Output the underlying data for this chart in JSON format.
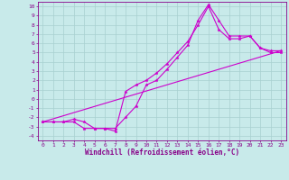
{
  "title": "",
  "xlabel": "Windchill (Refroidissement éolien,°C)",
  "ylabel": "",
  "xlim": [
    -0.5,
    23.5
  ],
  "ylim": [
    -4.5,
    10.5
  ],
  "xticks": [
    0,
    1,
    2,
    3,
    4,
    5,
    6,
    7,
    8,
    9,
    10,
    11,
    12,
    13,
    14,
    15,
    16,
    17,
    18,
    19,
    20,
    21,
    22,
    23
  ],
  "yticks": [
    -4,
    -3,
    -2,
    -1,
    0,
    1,
    2,
    3,
    4,
    5,
    6,
    7,
    8,
    9,
    10
  ],
  "background_color": "#c8eaea",
  "grid_color": "#a8d0d0",
  "line_color": "#cc00cc",
  "line1_x": [
    0,
    1,
    2,
    3,
    4,
    5,
    6,
    7,
    8,
    9,
    10,
    11,
    12,
    13,
    14,
    15,
    16,
    17,
    18,
    19,
    20,
    21,
    22,
    23
  ],
  "line1_y": [
    -2.5,
    -2.5,
    -2.5,
    -2.5,
    -3.2,
    -3.2,
    -3.2,
    -3.2,
    -2.0,
    -0.8,
    1.5,
    2.0,
    3.2,
    4.5,
    5.8,
    8.5,
    10.2,
    8.5,
    6.8,
    6.8,
    6.8,
    5.5,
    5.2,
    5.2
  ],
  "line2_x": [
    0,
    1,
    2,
    3,
    4,
    5,
    6,
    7,
    8,
    9,
    10,
    11,
    12,
    13,
    14,
    15,
    16,
    17,
    18,
    19,
    20,
    21,
    22,
    23
  ],
  "line2_y": [
    -2.5,
    -2.5,
    -2.5,
    -2.2,
    -2.5,
    -3.2,
    -3.2,
    -3.5,
    0.8,
    1.5,
    2.0,
    2.8,
    3.8,
    5.0,
    6.2,
    8.0,
    10.0,
    7.5,
    6.5,
    6.5,
    6.8,
    5.5,
    5.0,
    5.0
  ],
  "line3_x": [
    0,
    23
  ],
  "line3_y": [
    -2.5,
    5.2
  ],
  "figsize": [
    3.2,
    2.0
  ],
  "dpi": 100,
  "label_font_size": 5.5,
  "tick_font_size": 4.5
}
